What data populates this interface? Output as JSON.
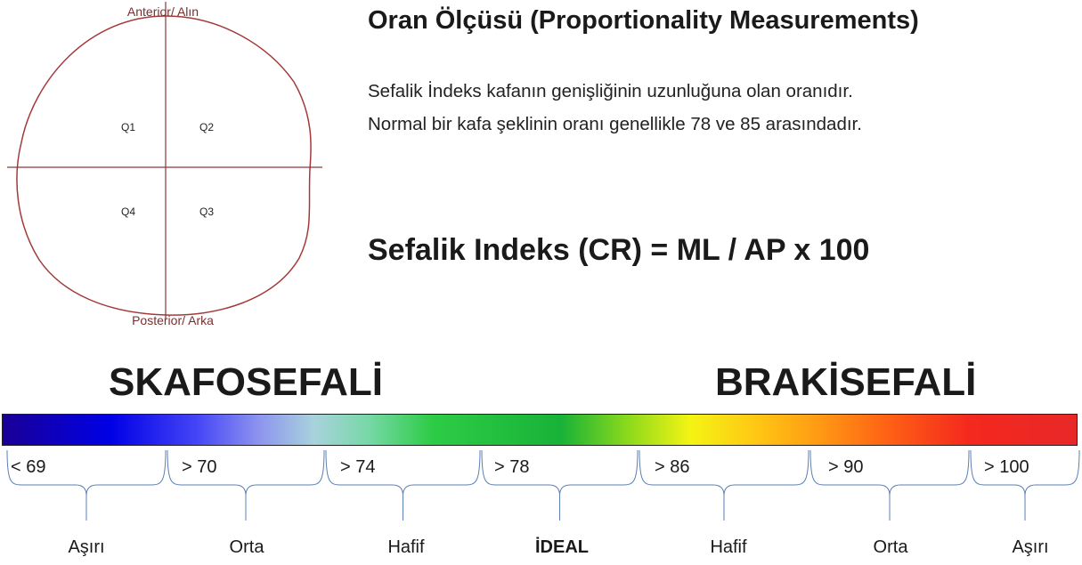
{
  "head_diagram": {
    "anterior_label": "Anterior/ Alın",
    "posterior_label": "Posterior/ Arka",
    "quadrants": [
      "Q1",
      "Q2",
      "Q3",
      "Q4"
    ]
  },
  "title": "Oran Ölçüsü (Proportionality Measurements)",
  "description": [
    "Sefalik İndeks kafanın genişliğinin uzunluğuna olan oranıdır.",
    "Normal bir kafa şeklinin oranı genellikle 78 ve 85 arasındadır."
  ],
  "formula": "Sefalik Indeks (CR) = ML / AP x 100",
  "scale": {
    "left_label": "SKAFOSEFALİ",
    "right_label": "BRAKİSEFALİ",
    "gradient_colors": [
      "#1a0096",
      "#0000e6",
      "#8e96ee",
      "#2dcc46",
      "#f4f414",
      "#ff9a14",
      "#e82828"
    ],
    "ranges": [
      "< 69",
      "> 70",
      "> 74",
      "> 78",
      "> 86",
      "> 90",
      "> 100"
    ],
    "categories": [
      "Aşırı",
      "Orta",
      "Hafif",
      "İDEAL",
      "Hafif",
      "Orta",
      "Aşırı"
    ],
    "ideal_index": 3
  },
  "colors": {
    "outline": "#a33a3a",
    "axis": "#8a3a3a",
    "brace": "#5b7fb5"
  }
}
